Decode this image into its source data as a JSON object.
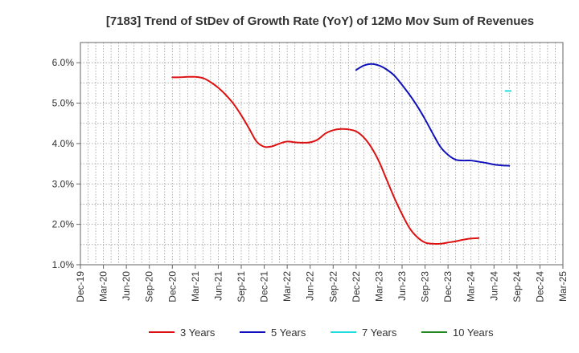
{
  "chart_data": {
    "type": "line",
    "title": "[7183]  Trend of StDev of Growth Rate (YoY) of 12Mo Mov Sum of Revenues",
    "xlabel": "",
    "ylabel": "",
    "ylim": [
      1.0,
      6.5
    ],
    "yticks": [
      "1.0%",
      "2.0%",
      "3.0%",
      "4.0%",
      "5.0%",
      "6.0%"
    ],
    "ytick_values": [
      1.0,
      2.0,
      3.0,
      4.0,
      5.0,
      6.0
    ],
    "xticks": [
      "Dec-19",
      "Mar-20",
      "Jun-20",
      "Sep-20",
      "Dec-20",
      "Mar-21",
      "Jun-21",
      "Sep-21",
      "Dec-21",
      "Mar-22",
      "Jun-22",
      "Sep-22",
      "Dec-22",
      "Mar-23",
      "Jun-23",
      "Sep-23",
      "Dec-23",
      "Mar-24",
      "Jun-24",
      "Sep-24",
      "Dec-24",
      "Mar-25"
    ],
    "grid": true,
    "legend_position": "bottom",
    "series": [
      {
        "name": "3 Years",
        "color": "#dd1111",
        "points": [
          [
            12,
            5.64
          ],
          [
            13,
            5.64
          ],
          [
            14,
            5.65
          ],
          [
            15,
            5.65
          ],
          [
            16,
            5.62
          ],
          [
            17,
            5.52
          ],
          [
            18,
            5.38
          ],
          [
            19,
            5.2
          ],
          [
            20,
            4.98
          ],
          [
            21,
            4.7
          ],
          [
            22,
            4.38
          ],
          [
            23,
            4.05
          ],
          [
            24,
            3.92
          ],
          [
            25,
            3.93
          ],
          [
            26,
            4.0
          ],
          [
            27,
            4.05
          ],
          [
            28,
            4.03
          ],
          [
            29,
            4.02
          ],
          [
            30,
            4.03
          ],
          [
            31,
            4.1
          ],
          [
            32,
            4.25
          ],
          [
            33,
            4.33
          ],
          [
            34,
            4.36
          ],
          [
            35,
            4.35
          ],
          [
            36,
            4.3
          ],
          [
            37,
            4.15
          ],
          [
            38,
            3.9
          ],
          [
            39,
            3.55
          ],
          [
            40,
            3.1
          ],
          [
            41,
            2.65
          ],
          [
            42,
            2.25
          ],
          [
            43,
            1.9
          ],
          [
            44,
            1.68
          ],
          [
            45,
            1.55
          ],
          [
            46,
            1.52
          ],
          [
            47,
            1.52
          ],
          [
            48,
            1.55
          ],
          [
            49,
            1.58
          ],
          [
            50,
            1.62
          ],
          [
            51,
            1.65
          ],
          [
            52,
            1.66
          ]
        ]
      },
      {
        "name": "5 Years",
        "color": "#1111bb",
        "points": [
          [
            36,
            5.82
          ],
          [
            37,
            5.93
          ],
          [
            38,
            5.97
          ],
          [
            39,
            5.93
          ],
          [
            40,
            5.83
          ],
          [
            41,
            5.68
          ],
          [
            42,
            5.45
          ],
          [
            43,
            5.2
          ],
          [
            44,
            4.92
          ],
          [
            45,
            4.6
          ],
          [
            46,
            4.25
          ],
          [
            47,
            3.92
          ],
          [
            48,
            3.72
          ],
          [
            49,
            3.6
          ],
          [
            50,
            3.58
          ],
          [
            51,
            3.58
          ],
          [
            52,
            3.55
          ],
          [
            53,
            3.52
          ],
          [
            54,
            3.48
          ],
          [
            55,
            3.46
          ],
          [
            56,
            3.45
          ]
        ]
      },
      {
        "name": "7 Years",
        "color": "#22dddd",
        "points": [
          [
            55.5,
            5.3
          ],
          [
            56.2,
            5.3
          ]
        ]
      },
      {
        "name": "10 Years",
        "color": "#228822",
        "points": []
      }
    ]
  }
}
